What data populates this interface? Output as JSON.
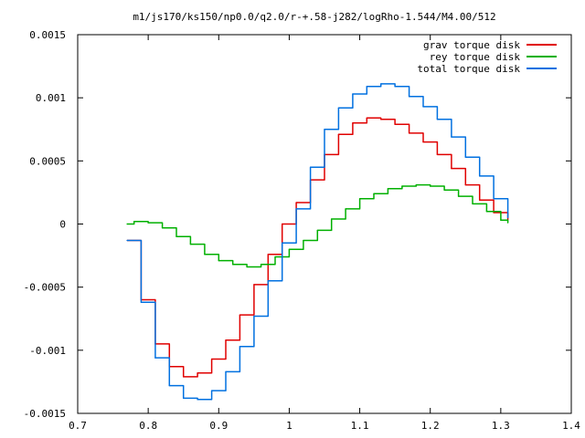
{
  "chart_data": {
    "type": "line",
    "title": "m1/js170/ks150/np0.0/q2.0/r-+.58-j282/logRho-1.544/M4.00/512",
    "xlabel": "",
    "ylabel": "",
    "xlim": [
      0.7,
      1.4
    ],
    "ylim": [
      -0.0015,
      0.0015
    ],
    "x_ticks": [
      0.7,
      0.8,
      0.9,
      1.0,
      1.1,
      1.2,
      1.3,
      1.4
    ],
    "x_tick_labels": [
      "0.7",
      "0.8",
      "0.9",
      "1",
      "1.1",
      "1.2",
      "1.3",
      "1.4"
    ],
    "y_ticks": [
      -0.0015,
      -0.001,
      -0.0005,
      0,
      0.0005,
      0.001,
      0.0015
    ],
    "y_tick_labels": [
      "-0.0015",
      "-0.001",
      "-0.0005",
      "0",
      "0.0005",
      "0.001",
      "0.0015"
    ],
    "grid": false,
    "legend_position": "top-right",
    "series": [
      {
        "name": "grav torque disk",
        "color": "#e00000",
        "x": [
          0.77,
          0.79,
          0.81,
          0.83,
          0.85,
          0.87,
          0.89,
          0.91,
          0.93,
          0.95,
          0.97,
          0.99,
          1.01,
          1.03,
          1.05,
          1.07,
          1.09,
          1.11,
          1.13,
          1.15,
          1.17,
          1.19,
          1.21,
          1.23,
          1.25,
          1.27,
          1.29,
          1.31
        ],
        "y": [
          -0.00013,
          -0.0006,
          -0.00095,
          -0.00113,
          -0.00121,
          -0.00118,
          -0.00107,
          -0.00092,
          -0.00072,
          -0.00048,
          -0.00024,
          0.0,
          0.00017,
          0.00035,
          0.00055,
          0.00071,
          0.0008,
          0.00084,
          0.00083,
          0.00079,
          0.00072,
          0.00065,
          0.00055,
          0.00044,
          0.00031,
          0.00019,
          9e-05,
          3e-05
        ]
      },
      {
        "name": "rey torque disk",
        "color": "#00b000",
        "x": [
          0.77,
          0.78,
          0.8,
          0.82,
          0.84,
          0.86,
          0.88,
          0.9,
          0.92,
          0.94,
          0.96,
          0.98,
          1.0,
          1.02,
          1.04,
          1.06,
          1.08,
          1.1,
          1.12,
          1.14,
          1.16,
          1.18,
          1.2,
          1.22,
          1.24,
          1.26,
          1.28,
          1.3,
          1.31
        ],
        "y": [
          0.0,
          2e-05,
          1e-05,
          -3e-05,
          -0.0001,
          -0.00016,
          -0.00024,
          -0.00029,
          -0.00032,
          -0.00034,
          -0.00032,
          -0.00026,
          -0.0002,
          -0.00013,
          -5e-05,
          4e-05,
          0.00012,
          0.0002,
          0.00024,
          0.00028,
          0.0003,
          0.00031,
          0.0003,
          0.00027,
          0.00022,
          0.00016,
          0.0001,
          3e-05,
          1e-05
        ]
      },
      {
        "name": "total torque disk",
        "color": "#0070e0",
        "x": [
          0.77,
          0.79,
          0.81,
          0.83,
          0.85,
          0.87,
          0.89,
          0.91,
          0.93,
          0.95,
          0.97,
          0.99,
          1.01,
          1.03,
          1.05,
          1.07,
          1.09,
          1.11,
          1.13,
          1.15,
          1.17,
          1.19,
          1.21,
          1.23,
          1.25,
          1.27,
          1.29,
          1.31
        ],
        "y": [
          -0.00013,
          -0.00062,
          -0.00106,
          -0.00128,
          -0.00138,
          -0.00139,
          -0.00132,
          -0.00117,
          -0.00097,
          -0.00073,
          -0.00045,
          -0.00015,
          0.00012,
          0.00045,
          0.00075,
          0.00092,
          0.00103,
          0.00109,
          0.00111,
          0.00109,
          0.00101,
          0.00093,
          0.00083,
          0.00069,
          0.00053,
          0.00038,
          0.0002,
          5e-05
        ]
      }
    ]
  }
}
